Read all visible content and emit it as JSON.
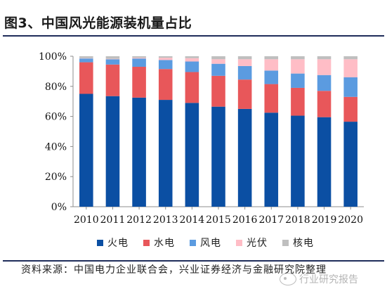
{
  "header": {
    "title": "图3、中国风光能源装机量占比"
  },
  "chart_data": {
    "type": "bar",
    "stacked": true,
    "categories": [
      "2010",
      "2011",
      "2012",
      "2013",
      "2014",
      "2015",
      "2016",
      "2017",
      "2018",
      "2019",
      "2020"
    ],
    "series": [
      {
        "name": "火电",
        "color": "#0b4fa3",
        "values": [
          75,
          73.5,
          72.5,
          71,
          69,
          66.5,
          65,
          62.5,
          60.5,
          59.5,
          56.5
        ]
      },
      {
        "name": "水电",
        "color": "#e8575a",
        "values": [
          21,
          21,
          20.5,
          20.5,
          20.5,
          20.5,
          19.5,
          19,
          18.5,
          17.5,
          16.5
        ]
      },
      {
        "name": "风电",
        "color": "#5b9be0",
        "values": [
          2.5,
          3.5,
          5.5,
          6,
          7,
          8,
          9,
          9,
          9.5,
          10.5,
          13
        ]
      },
      {
        "name": "光伏",
        "color": "#ffbdc6",
        "values": [
          0.2,
          0.3,
          0.5,
          1.5,
          2.2,
          3,
          4.5,
          7.5,
          9.5,
          10.5,
          12
        ]
      },
      {
        "name": "核电",
        "color": "#bfbfbf",
        "values": [
          1.3,
          1.7,
          1,
          1,
          1.3,
          2,
          2,
          2,
          2,
          2,
          2
        ]
      }
    ],
    "ylim": [
      0,
      100
    ],
    "yticks": [
      "0%",
      "20%",
      "40%",
      "60%",
      "80%",
      "100%"
    ],
    "legend_position": "bottom",
    "grid": false
  },
  "footer": {
    "source": "资料来源：中国电力企业联合会，兴业证券经济与金融研究院整理",
    "watermark": "行业研究报告"
  }
}
